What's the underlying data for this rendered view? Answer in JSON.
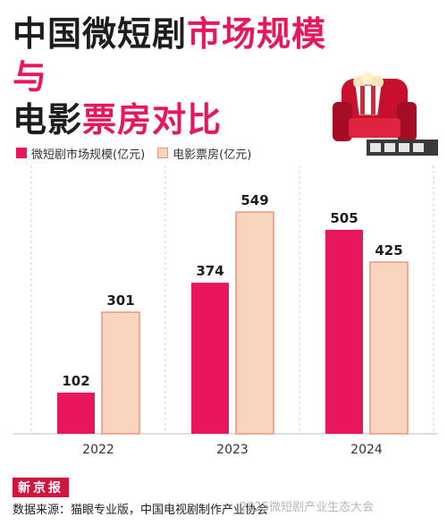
{
  "title": {
    "line1_part1": "中国微短剧",
    "line1_part2": "市场规模与",
    "line2_part1": "电影",
    "line2_part2": "票房对比"
  },
  "colors": {
    "short_drama": "#e8175d",
    "box_office_fill": "#f9d5c0",
    "box_office_stroke": "#e9967a",
    "highlight": "#e8175d"
  },
  "source": {
    "logo": "新京报",
    "text": "数据来源：猫眼专业版，中国电视剧制作产业协会"
  },
  "watermark": "2025微短剧产业生态大会",
  "chart_data": {
    "type": "bar",
    "categories": [
      "2022",
      "2023",
      "2024"
    ],
    "series": [
      {
        "name": "微短剧市场规模(亿元)",
        "values": [
          102,
          374,
          505
        ]
      },
      {
        "name": "电影票房(亿元)",
        "values": [
          301,
          549,
          425
        ]
      }
    ],
    "title": "中国微短剧市场规模与电影票房对比",
    "ylim": [
      0,
      620
    ],
    "grid": "vertical dashed separators",
    "legend": "top-left"
  }
}
